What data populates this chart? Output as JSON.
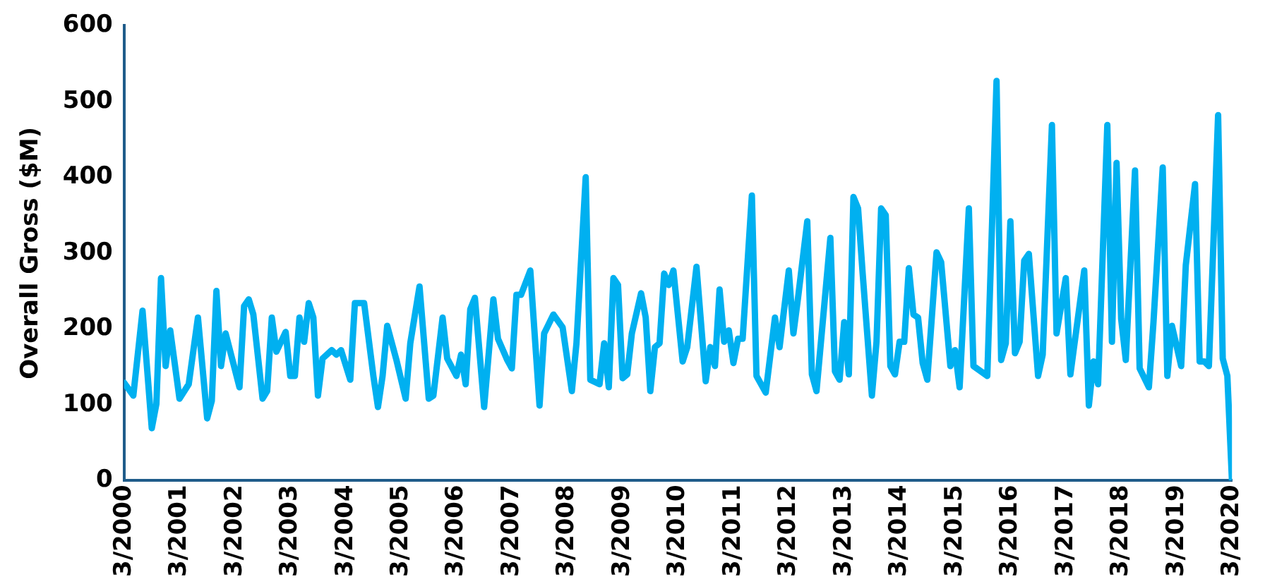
{
  "chart_data": {
    "type": "line",
    "ylabel": "Overall Gross ($M)",
    "x": [
      "2000-03",
      "2000-05",
      "2000-07",
      "2000-09",
      "2000-10",
      "2000-11",
      "2000-12",
      "2001-01",
      "2001-03",
      "2001-05",
      "2001-07",
      "2001-09",
      "2001-10",
      "2001-11",
      "2001-12",
      "2002-01",
      "2002-04",
      "2002-05",
      "2002-06",
      "2002-07",
      "2002-09",
      "2002-10",
      "2002-11",
      "2002-12",
      "2003-02",
      "2003-03",
      "2003-04",
      "2003-05",
      "2003-06",
      "2003-07",
      "2003-08",
      "2003-09",
      "2003-10",
      "2003-12",
      "2004-01",
      "2004-02",
      "2004-04",
      "2004-05",
      "2004-07",
      "2004-09",
      "2004-10",
      "2004-11",
      "2004-12",
      "2005-02",
      "2005-04",
      "2005-05",
      "2005-07",
      "2005-09",
      "2005-10",
      "2005-12",
      "2006-01",
      "2006-03",
      "2006-04",
      "2006-05",
      "2006-06",
      "2006-07",
      "2006-09",
      "2006-11",
      "2006-12",
      "2007-02",
      "2007-03",
      "2007-04",
      "2007-05",
      "2007-07",
      "2007-09",
      "2007-10",
      "2007-12",
      "2008-02",
      "2008-04",
      "2008-05",
      "2008-07",
      "2008-08",
      "2008-10",
      "2008-11",
      "2008-12",
      "2009-01",
      "2009-02",
      "2009-03",
      "2009-04",
      "2009-05",
      "2009-07",
      "2009-08",
      "2009-09",
      "2009-10",
      "2009-11",
      "2009-12",
      "2010-01",
      "2010-02",
      "2010-04",
      "2010-05",
      "2010-07",
      "2010-09",
      "2010-10",
      "2010-11",
      "2010-12",
      "2011-01",
      "2011-02",
      "2011-03",
      "2011-04",
      "2011-05",
      "2011-07",
      "2011-08",
      "2011-10",
      "2011-12",
      "2012-01",
      "2012-03",
      "2012-04",
      "2012-05",
      "2012-07",
      "2012-08",
      "2012-09",
      "2012-12",
      "2013-01",
      "2013-02",
      "2013-03",
      "2013-04",
      "2013-05",
      "2013-06",
      "2013-07",
      "2013-09",
      "2013-10",
      "2013-11",
      "2013-12",
      "2014-01",
      "2014-02",
      "2014-03",
      "2014-04",
      "2014-05",
      "2014-06",
      "2014-07",
      "2014-08",
      "2014-09",
      "2014-11",
      "2014-12",
      "2015-02",
      "2015-03",
      "2015-04",
      "2015-06",
      "2015-07",
      "2015-10",
      "2015-12",
      "2016-01",
      "2016-02",
      "2016-03",
      "2016-04",
      "2016-05",
      "2016-06",
      "2016-07",
      "2016-09",
      "2016-10",
      "2016-12",
      "2017-01",
      "2017-03",
      "2017-04",
      "2017-07",
      "2017-08",
      "2017-09",
      "2017-10",
      "2017-12",
      "2018-01",
      "2018-02",
      "2018-03",
      "2018-04",
      "2018-06",
      "2018-07",
      "2018-09",
      "2018-10",
      "2018-12",
      "2019-01",
      "2019-02",
      "2019-04",
      "2019-05",
      "2019-07",
      "2019-08",
      "2019-09",
      "2019-10",
      "2019-12",
      "2020-01",
      "2020-02",
      "2020-03"
    ],
    "series": [
      {
        "color": "#00b0f0",
        "values": [
          129,
          112,
          224,
          69,
          101,
          267,
          151,
          198,
          108,
          127,
          215,
          82,
          105,
          250,
          151,
          194,
          123,
          230,
          239,
          219,
          108,
          118,
          215,
          170,
          196,
          138,
          138,
          215,
          183,
          234,
          215,
          112,
          161,
          172,
          166,
          172,
          133,
          234,
          234,
          138,
          97,
          138,
          204,
          159,
          108,
          181,
          256,
          108,
          112,
          215,
          161,
          138,
          166,
          127,
          226,
          241,
          97,
          239,
          187,
          159,
          148,
          245,
          245,
          277,
          99,
          194,
          219,
          202,
          118,
          181,
          400,
          133,
          127,
          181,
          123,
          267,
          258,
          135,
          140,
          194,
          247,
          215,
          118,
          176,
          181,
          273,
          258,
          277,
          157,
          176,
          282,
          131,
          176,
          151,
          252,
          183,
          198,
          155,
          187,
          187,
          376,
          138,
          116,
          215,
          176,
          277,
          194,
          241,
          342,
          140,
          118,
          320,
          144,
          133,
          209,
          140,
          374,
          359,
          273,
          112,
          183,
          359,
          350,
          151,
          140,
          183,
          183,
          280,
          219,
          215,
          155,
          133,
          301,
          288,
          151,
          172,
          123,
          359,
          151,
          138,
          527,
          159,
          181,
          342,
          168,
          183,
          290,
          299,
          138,
          166,
          469,
          194,
          267,
          140,
          277,
          99,
          157,
          127,
          469,
          183,
          419,
          213,
          159,
          409,
          148,
          123,
          209,
          413,
          138,
          204,
          151,
          284,
          391,
          157,
          157,
          151,
          482,
          161,
          138,
          0
        ]
      }
    ],
    "xlim": [
      "2000-03",
      "2020-03"
    ],
    "xticks": [
      {
        "value": "2000-03",
        "label": "3/2000"
      },
      {
        "value": "2001-03",
        "label": "3/2001"
      },
      {
        "value": "2002-03",
        "label": "3/2002"
      },
      {
        "value": "2003-03",
        "label": "3/2003"
      },
      {
        "value": "2004-03",
        "label": "3/2004"
      },
      {
        "value": "2005-03",
        "label": "3/2005"
      },
      {
        "value": "2006-03",
        "label": "3/2006"
      },
      {
        "value": "2007-03",
        "label": "3/2007"
      },
      {
        "value": "2008-03",
        "label": "3/2008"
      },
      {
        "value": "2009-03",
        "label": "3/2009"
      },
      {
        "value": "2010-03",
        "label": "3/2010"
      },
      {
        "value": "2011-03",
        "label": "3/2011"
      },
      {
        "value": "2012-03",
        "label": "3/2012"
      },
      {
        "value": "2013-03",
        "label": "3/2013"
      },
      {
        "value": "2014-03",
        "label": "3/2014"
      },
      {
        "value": "2015-03",
        "label": "3/2015"
      },
      {
        "value": "2016-03",
        "label": "3/2016"
      },
      {
        "value": "2017-03",
        "label": "3/2017"
      },
      {
        "value": "2018-03",
        "label": "3/2018"
      },
      {
        "value": "2019-03",
        "label": "3/2019"
      },
      {
        "value": "2020-03",
        "label": "3/2020"
      }
    ],
    "ylim": [
      0,
      600
    ],
    "yticks": [
      0,
      100,
      200,
      300,
      400,
      500,
      600
    ],
    "grid": false,
    "legend": false,
    "marker": "none",
    "line_style": "solid"
  }
}
